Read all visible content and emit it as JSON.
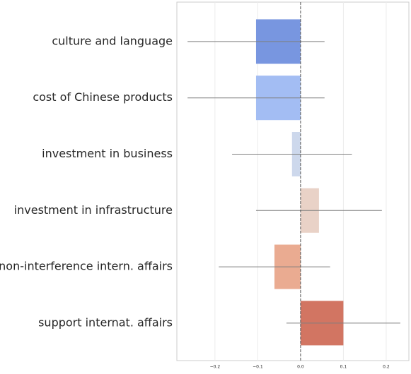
{
  "chart_data": {
    "type": "hbar",
    "categories": [
      "culture and language",
      "cost of Chinese products",
      "investment in business",
      "investment in infrastructure",
      "non-interference intern. affairs",
      "support internat. affairs"
    ],
    "values": [
      -0.104,
      -0.104,
      -0.02,
      0.043,
      -0.061,
      0.1
    ],
    "errors": [
      0.16,
      0.16,
      0.14,
      0.147,
      0.13,
      0.133
    ],
    "colors": [
      "#7896e0",
      "#a3bdf3",
      "#cdd8ec",
      "#e9d2c7",
      "#eaab91",
      "#d27562"
    ],
    "xlim": [
      -0.289,
      0.253
    ],
    "xticks": [
      {
        "value": -0.2,
        "label": "−0.2"
      },
      {
        "value": -0.1,
        "label": "−0.1"
      },
      {
        "value": 0,
        "label": "0.0"
      },
      0.1,
      0.2
    ],
    "grid": true
  }
}
